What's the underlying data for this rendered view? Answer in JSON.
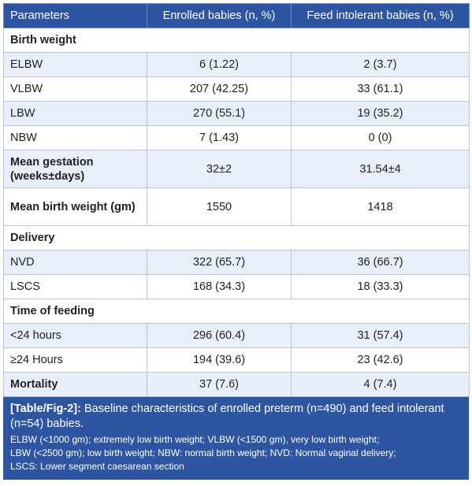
{
  "table": {
    "headers": [
      "Parameters",
      "Enrolled babies (n, %)",
      "Feed intolerant babies (n, %)"
    ],
    "rows": [
      {
        "type": "section",
        "label": "Birth weight"
      },
      {
        "type": "data",
        "label": "ELBW",
        "enrolled": "6 (1.22)",
        "feed_intolerant": "2 (3.7)"
      },
      {
        "type": "data",
        "label": "VLBW",
        "enrolled": "207 (42.25)",
        "feed_intolerant": "33 (61.1)"
      },
      {
        "type": "data",
        "label": "LBW",
        "enrolled": "270 (55.1)",
        "feed_intolerant": "19 (35.2)"
      },
      {
        "type": "data",
        "label": "NBW",
        "enrolled": "7 (1.43)",
        "feed_intolerant": "0 (0)"
      },
      {
        "type": "data-bold",
        "label": "Mean gestation (weeks±days)",
        "enrolled": "32±2",
        "feed_intolerant": "31.54±4"
      },
      {
        "type": "data-bold",
        "label": "Mean birth weight (gm)",
        "enrolled": "1550",
        "feed_intolerant": "1418"
      },
      {
        "type": "section",
        "label": "Delivery"
      },
      {
        "type": "data",
        "label": "NVD",
        "enrolled": "322 (65.7)",
        "feed_intolerant": "36 (66.7)"
      },
      {
        "type": "data",
        "label": "LSCS",
        "enrolled": "168 (34.3)",
        "feed_intolerant": "18 (33.3)"
      },
      {
        "type": "section",
        "label": "Time of feeding"
      },
      {
        "type": "data",
        "label": "<24 hours",
        "enrolled": "296 (60.4)",
        "feed_intolerant": "31 (57.4)"
      },
      {
        "type": "data",
        "label": "≥24 Hours",
        "enrolled": "194 (39.6)",
        "feed_intolerant": "23 (42.6)"
      },
      {
        "type": "data-bold",
        "label": "Mortality",
        "enrolled": "37 (7.6)",
        "feed_intolerant": "4 (7.4)"
      }
    ]
  },
  "caption": {
    "tag": "[Table/Fig-2]:",
    "text": " Baseline characteristics of enrolled preterm (n=490) and feed intolerant (n=54) babies.",
    "notes_line1": "ELBW (<1000 gm); extremely low birth weight; VLBW (<1500 gm), very low birth weight;",
    "notes_line2": "LBW (<2500 gm); low birth weight; NBW: normal birth weight; NVD: Normal vaginal delivery;",
    "notes_line3": "LSCS: Lower segment caesarean section"
  },
  "colors": {
    "header_bg": "#2e55a2",
    "alt_row_bg": "#e9eff8",
    "border": "#b9c6d6"
  }
}
